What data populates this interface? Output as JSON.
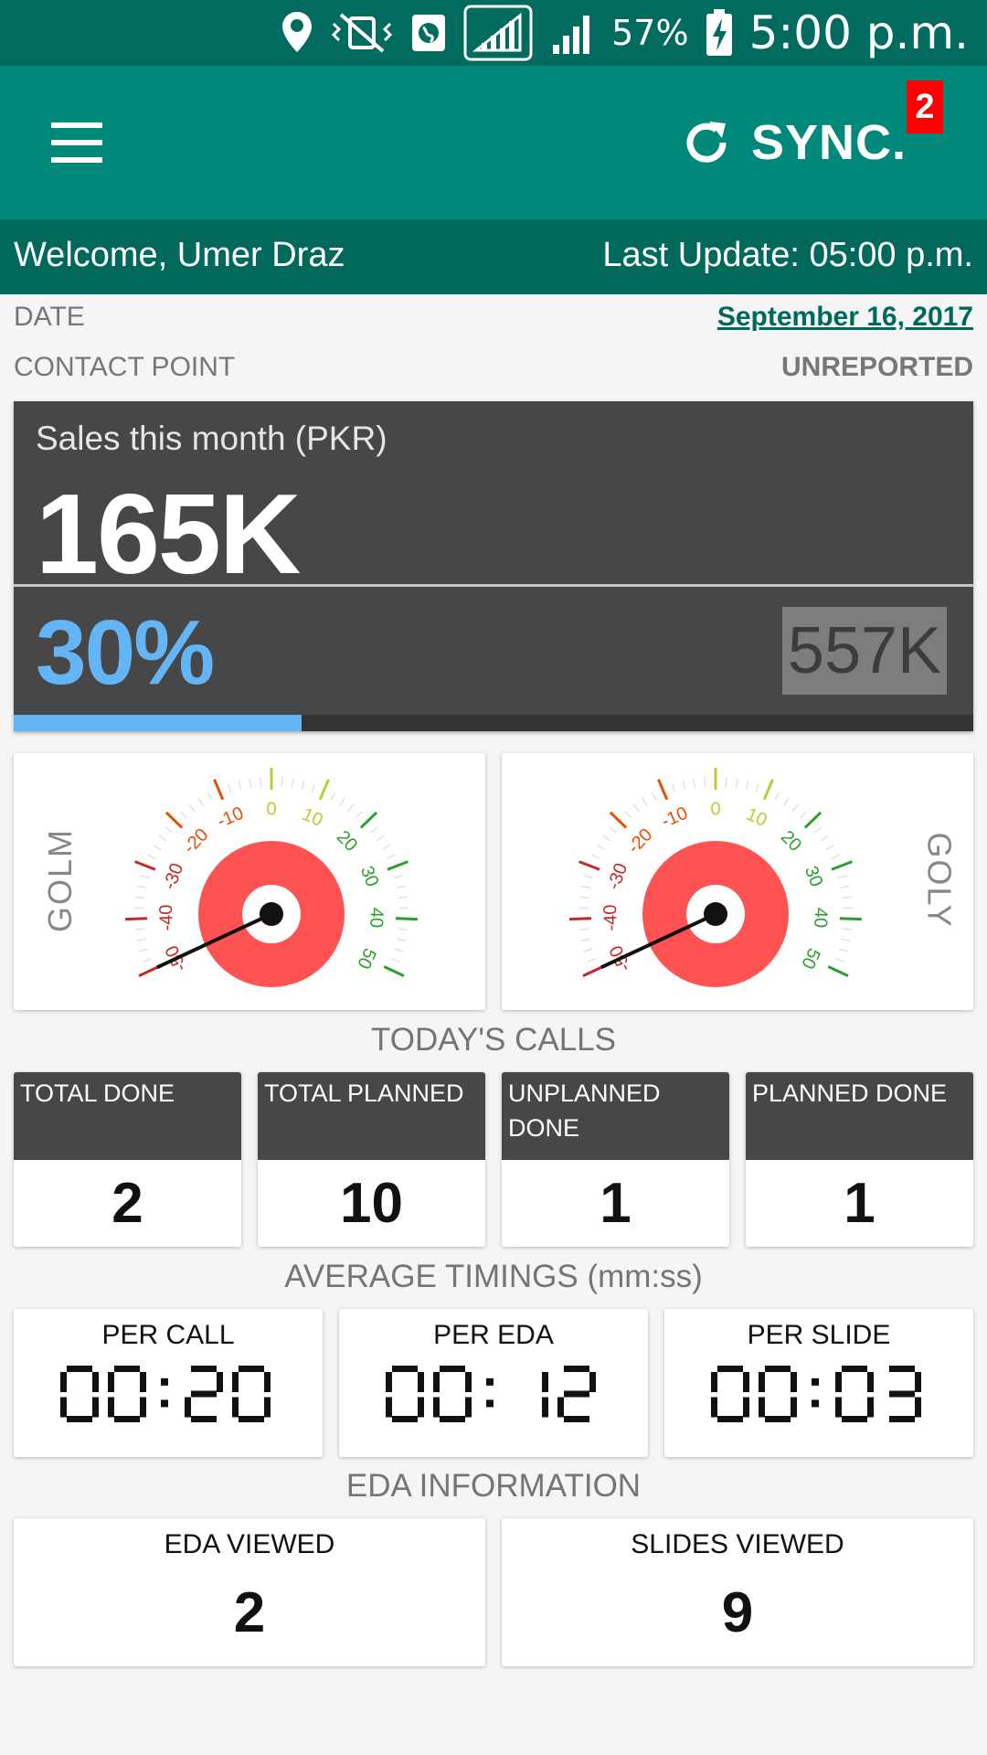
{
  "status_bar": {
    "battery_percent": "57%",
    "time": "5:00 p.m.",
    "icons": [
      "location-icon",
      "vibrate-off-icon",
      "globe-icon",
      "signal-sim1-icon",
      "signal-sim2-icon",
      "battery-charging-icon"
    ]
  },
  "app_bar": {
    "menu_icon": "hamburger-menu-icon",
    "sync_icon": "refresh-icon",
    "sync_label": "SYNC.",
    "sync_badge": "2"
  },
  "welcome": {
    "greeting": "Welcome, Umer Draz",
    "last_update": "Last Update: 05:00 p.m."
  },
  "info": {
    "date_label": "DATE",
    "date_value": "September 16, 2017",
    "contact_label": "CONTACT POINT",
    "contact_value": "UNREPORTED"
  },
  "sales": {
    "title": "Sales this month (PKR)",
    "value": "165K",
    "percent_label": "30%",
    "progress_fraction": 0.3,
    "target": "557K"
  },
  "gauges": [
    {
      "label": "GOLM",
      "value": -50,
      "min": -50,
      "max": 50,
      "tick_labels": [
        "-50",
        "-40",
        "-30",
        "-20",
        "-10",
        "0",
        "10",
        "20",
        "30",
        "40",
        "50"
      ]
    },
    {
      "label": "GOLY",
      "value": -50,
      "min": -50,
      "max": 50,
      "tick_labels": [
        "-50",
        "-40",
        "-30",
        "-20",
        "-10",
        "0",
        "10",
        "20",
        "30",
        "40",
        "50"
      ]
    }
  ],
  "gauge_colors": {
    "ring": "#ff5252",
    "negative": "#c62828",
    "mid": "#e65100",
    "zero": "#c0ca33",
    "positive": "#2e9e2e",
    "needle": "#111111"
  },
  "calls": {
    "title": "TODAY'S CALLS",
    "items": [
      {
        "label": "TOTAL DONE",
        "value": "2"
      },
      {
        "label": "TOTAL PLANNED",
        "value": "10"
      },
      {
        "label": "UNPLANNED DONE",
        "value": "1"
      },
      {
        "label": "PLANNED DONE",
        "value": "1"
      }
    ]
  },
  "timings": {
    "title": "AVERAGE TIMINGS (mm:ss)",
    "items": [
      {
        "label": "PER CALL",
        "value": "00:20"
      },
      {
        "label": "PER EDA",
        "value": "00:12"
      },
      {
        "label": "PER SLIDE",
        "value": "00:03"
      }
    ]
  },
  "eda": {
    "title": "EDA INFORMATION",
    "items": [
      {
        "label": "EDA VIEWED",
        "value": "2"
      },
      {
        "label": "SLIDES VIEWED",
        "value": "9"
      }
    ]
  }
}
